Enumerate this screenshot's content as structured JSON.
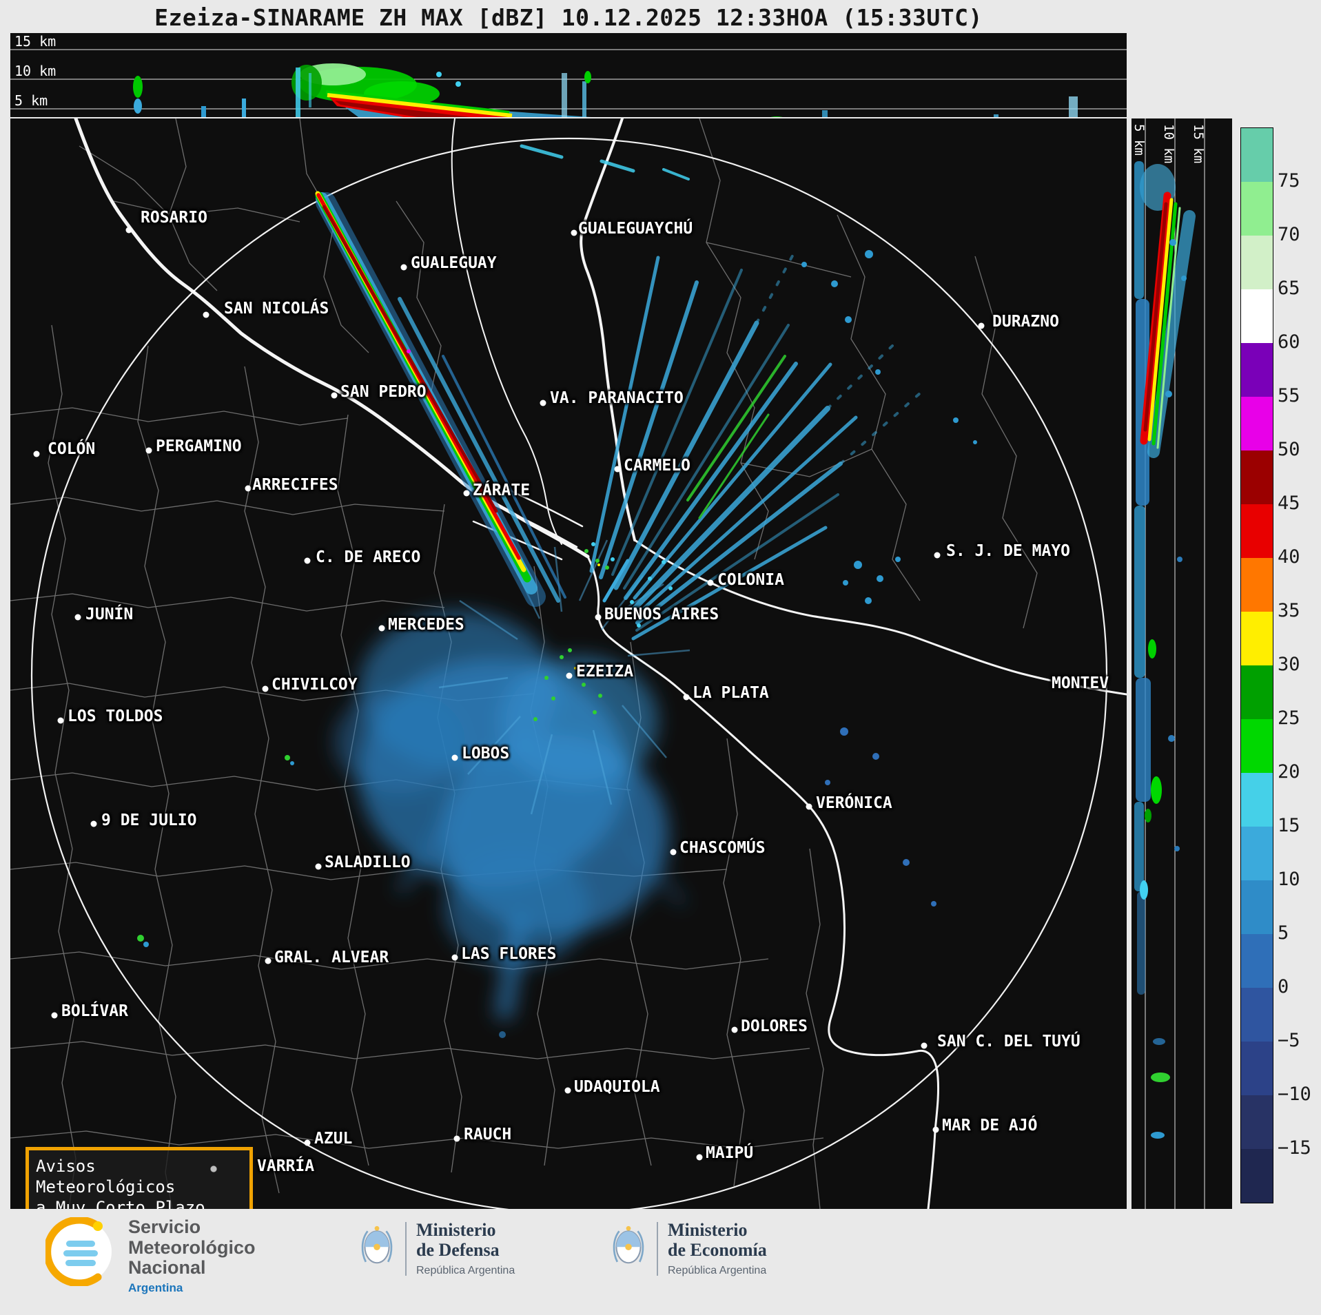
{
  "title": "Ezeiza-SINARAME ZH MAX [dBZ] 10.12.2025 12:33HOA (15:33UTC)",
  "top_profile": {
    "labels": [
      "15 km",
      "10 km",
      "5 km"
    ]
  },
  "right_profile": {
    "labels": [
      "5 km",
      "10 km",
      "15 km"
    ]
  },
  "colorbar": {
    "tick_labels": [
      "75",
      "70",
      "65",
      "60",
      "55",
      "50",
      "45",
      "40",
      "35",
      "30",
      "25",
      "20",
      "15",
      "10",
      "5",
      "0",
      "−5",
      "−10",
      "−15"
    ],
    "segments": [
      "#66CDAA",
      "#90EE90",
      "#D2F0C8",
      "#FFFFFF",
      "#7A00B8",
      "#E800E8",
      "#9B0000",
      "#E80000",
      "#FF7700",
      "#FFEE00",
      "#00A000",
      "#00D800",
      "#45D0E8",
      "#3BAADC",
      "#2F8CC8",
      "#2F6FB8",
      "#2F55A0",
      "#2C4288",
      "#283365",
      "#1F2750"
    ]
  },
  "map": {
    "cities": [
      {
        "name": "ROSARIO",
        "label": [
          189,
          131
        ],
        "dot": [
          172,
          162
        ]
      },
      {
        "name": "GUALEGUAYCHÚ",
        "label": [
          824,
          147
        ],
        "dot": [
          818,
          166
        ]
      },
      {
        "name": "GUALEGUAY",
        "label": [
          581,
          197
        ],
        "dot": [
          571,
          216
        ]
      },
      {
        "name": "SAN NICOLÁS",
        "label": [
          310,
          263
        ],
        "dot": [
          284,
          285
        ]
      },
      {
        "name": "DURAZNO",
        "label": [
          1425,
          282
        ],
        "dot": [
          1409,
          301
        ]
      },
      {
        "name": "SAN PEDRO",
        "label": [
          479,
          384
        ],
        "dot": [
          470,
          402
        ]
      },
      {
        "name": "VA. PARANACITO",
        "label": [
          783,
          393
        ],
        "dot": [
          773,
          413
        ]
      },
      {
        "name": "COLÓN",
        "label": [
          54,
          467
        ],
        "dot": [
          38,
          487
        ]
      },
      {
        "name": "PERGAMINO",
        "label": [
          211,
          463
        ],
        "dot": [
          201,
          482
        ]
      },
      {
        "name": "ARRECIFES",
        "label": [
          351,
          519
        ],
        "dot": [
          345,
          537
        ]
      },
      {
        "name": "CARMELO",
        "label": [
          890,
          491
        ],
        "dot": [
          881,
          509
        ]
      },
      {
        "name": "ZÁRATE",
        "label": [
          671,
          527
        ],
        "dot": [
          662,
          544
        ]
      },
      {
        "name": "C. DE ARECO",
        "label": [
          443,
          624
        ],
        "dot": [
          431,
          642
        ]
      },
      {
        "name": "S. J. DE MAYO",
        "label": [
          1358,
          615
        ],
        "dot": [
          1345,
          634
        ]
      },
      {
        "name": "JUNÍN",
        "label": [
          109,
          707
        ],
        "dot": [
          98,
          724
        ]
      },
      {
        "name": "COLONIA",
        "label": [
          1026,
          657
        ],
        "dot": [
          1016,
          674
        ]
      },
      {
        "name": "MERCEDES",
        "label": [
          548,
          722
        ],
        "dot": [
          539,
          740
        ]
      },
      {
        "name": "BUENOS AIRES",
        "label": [
          862,
          707
        ],
        "dot": [
          853,
          724
        ]
      },
      {
        "name": "EZEIZA",
        "label": [
          821,
          790
        ],
        "dot": [
          811,
          809
        ]
      },
      {
        "name": "CHIVILCOY",
        "label": [
          379,
          809
        ],
        "dot": [
          370,
          828
        ]
      },
      {
        "name": "LA PLATA",
        "label": [
          990,
          821
        ],
        "dot": [
          981,
          840
        ]
      },
      {
        "name": "MONTEV",
        "label": [
          1511,
          807
        ],
        "dot": null
      },
      {
        "name": "LOS TOLDOS",
        "label": [
          83,
          855
        ],
        "dot": [
          73,
          874
        ]
      },
      {
        "name": "LOBOS",
        "label": [
          655,
          909
        ],
        "dot": [
          645,
          928
        ]
      },
      {
        "name": "VERÓNICA",
        "label": [
          1169,
          981
        ],
        "dot": [
          1159,
          999
        ]
      },
      {
        "name": "9 DE JULIO",
        "label": [
          132,
          1006
        ],
        "dot": [
          121,
          1024
        ]
      },
      {
        "name": "CHASCOMÚS",
        "label": [
          971,
          1046
        ],
        "dot": [
          962,
          1065
        ]
      },
      {
        "name": "SALADILLO",
        "label": [
          456,
          1067
        ],
        "dot": [
          447,
          1086
        ]
      },
      {
        "name": "GRAL. ALVEAR",
        "label": [
          383,
          1205
        ],
        "dot": [
          374,
          1223
        ]
      },
      {
        "name": "LAS FLORES",
        "label": [
          654,
          1200
        ],
        "dot": [
          645,
          1218
        ]
      },
      {
        "name": "BOLÍVAR",
        "label": [
          74,
          1283
        ],
        "dot": [
          64,
          1302
        ]
      },
      {
        "name": "DOLORES",
        "label": [
          1060,
          1305
        ],
        "dot": [
          1051,
          1323
        ]
      },
      {
        "name": "SAN C. DEL TUYÚ",
        "label": [
          1345,
          1327
        ],
        "dot": [
          1326,
          1346
        ]
      },
      {
        "name": "UDAQUIOLA",
        "label": [
          818,
          1393
        ],
        "dot": [
          809,
          1411
        ]
      },
      {
        "name": "MAR DE AJÓ",
        "label": [
          1352,
          1449
        ],
        "dot": [
          1343,
          1468
        ]
      },
      {
        "name": "AZUL",
        "label": [
          441,
          1468
        ],
        "dot": [
          431,
          1487
        ]
      },
      {
        "name": "RAUCH",
        "label": [
          658,
          1462
        ],
        "dot": [
          648,
          1481
        ]
      },
      {
        "name": "MAIPÚ",
        "label": [
          1009,
          1489
        ],
        "dot": [
          1000,
          1508
        ]
      },
      {
        "name": "VARRÍA",
        "label": [
          358,
          1508
        ],
        "dot": [
          295,
          1525
        ],
        "dim": true
      }
    ]
  },
  "notice": {
    "line1": "Avisos Meteorológicos",
    "line2": "a Muy Corto Plazo"
  },
  "footer": {
    "smn": {
      "line1": "Servicio",
      "line2": "Meteorológico",
      "line3": "Nacional",
      "country": "Argentina"
    },
    "defensa": {
      "line1": "Ministerio",
      "line2": "de Defensa",
      "sub": "República Argentina"
    },
    "economia": {
      "line1": "Ministerio",
      "line2": "de Economía",
      "sub": "República Argentina"
    }
  }
}
